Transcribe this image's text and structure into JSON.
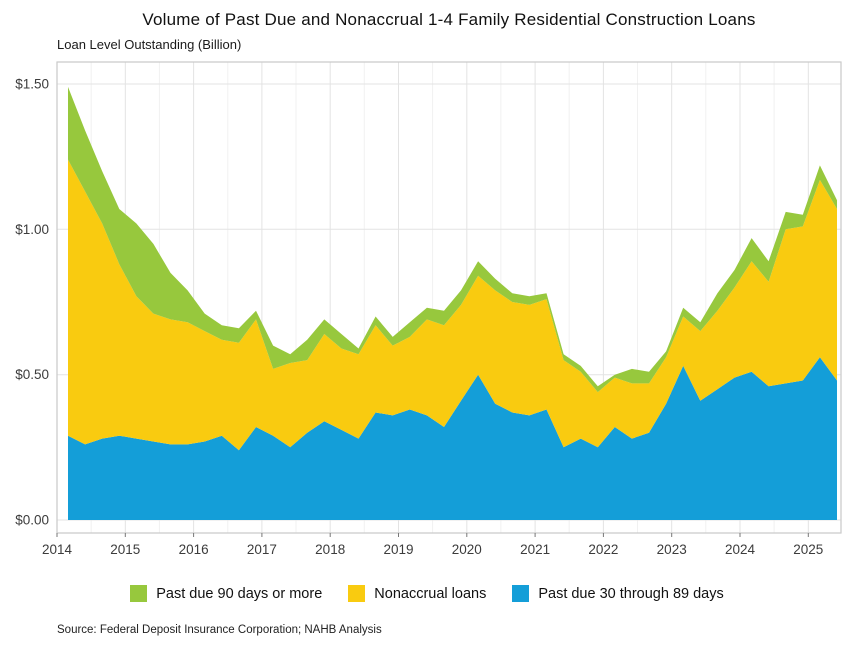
{
  "title": "Volume of Past Due and Nonaccrual 1-4 Family Residential Construction Loans",
  "subtitle": "Loan Level Outstanding (Billion)",
  "source": "Source: Federal Deposit Insurance Corporation; NAHB Analysis",
  "colors": {
    "past_due_90": "#97C83D",
    "nonaccrual": "#F9CB10",
    "past_due_30_89": "#149ED8",
    "gridline_major": "#E3E3E3",
    "gridline_minor": "#F1F1F1",
    "panel_border": "#C9C9C9",
    "axis_text": "#3c3c3c"
  },
  "legend": {
    "items": [
      {
        "label": "Past due 90 days or more",
        "color_key": "past_due_90"
      },
      {
        "label": "Nonaccrual loans",
        "color_key": "nonaccrual"
      },
      {
        "label": "Past due 30 through 89 days",
        "color_key": "past_due_30_89"
      }
    ]
  },
  "chart_data": {
    "type": "area",
    "stacked": true,
    "title": "Volume of Past Due and Nonaccrual 1-4 Family Residential Construction Loans",
    "ylabel": "Loan Level Outstanding (Billion)",
    "xlabel": "",
    "grid": true,
    "legend_position": "bottom",
    "ylim": [
      0,
      1.5
    ],
    "y_ticks": [
      0,
      0.5,
      1.0,
      1.5
    ],
    "y_tick_labels": [
      "$0.00",
      "$0.50",
      "$1.00",
      "$1.50"
    ],
    "x_tick_labels": [
      "2014",
      "2015",
      "2016",
      "2017",
      "2018",
      "2019",
      "2020",
      "2021",
      "2022",
      "2023",
      "2024",
      "2025"
    ],
    "categories": [
      "2014 Q1",
      "2014 Q2",
      "2014 Q3",
      "2014 Q4",
      "2015 Q1",
      "2015 Q2",
      "2015 Q3",
      "2015 Q4",
      "2016 Q1",
      "2016 Q2",
      "2016 Q3",
      "2016 Q4",
      "2017 Q1",
      "2017 Q2",
      "2017 Q3",
      "2017 Q4",
      "2018 Q1",
      "2018 Q2",
      "2018 Q3",
      "2018 Q4",
      "2019 Q1",
      "2019 Q2",
      "2019 Q3",
      "2019 Q4",
      "2020 Q1",
      "2020 Q2",
      "2020 Q3",
      "2020 Q4",
      "2021 Q1",
      "2021 Q2",
      "2021 Q3",
      "2021 Q4",
      "2022 Q1",
      "2022 Q2",
      "2022 Q3",
      "2022 Q4",
      "2023 Q1",
      "2023 Q2",
      "2023 Q3",
      "2023 Q4",
      "2024 Q1",
      "2024 Q2",
      "2024 Q3",
      "2024 Q4",
      "2025 Q1",
      "2025 Q2"
    ],
    "series": [
      {
        "name": "Past due 30 through 89 days",
        "color": "#149ED8",
        "values": [
          0.29,
          0.26,
          0.28,
          0.29,
          0.28,
          0.27,
          0.26,
          0.26,
          0.27,
          0.29,
          0.24,
          0.32,
          0.29,
          0.25,
          0.3,
          0.34,
          0.31,
          0.28,
          0.37,
          0.36,
          0.38,
          0.36,
          0.32,
          0.41,
          0.5,
          0.4,
          0.37,
          0.36,
          0.38,
          0.25,
          0.28,
          0.25,
          0.32,
          0.28,
          0.3,
          0.4,
          0.53,
          0.41,
          0.45,
          0.49,
          0.51,
          0.46,
          0.47,
          0.48,
          0.56,
          0.48
        ]
      },
      {
        "name": "Nonaccrual loans",
        "color": "#F9CB10",
        "values": [
          0.95,
          0.87,
          0.74,
          0.59,
          0.49,
          0.44,
          0.43,
          0.42,
          0.38,
          0.33,
          0.37,
          0.37,
          0.23,
          0.29,
          0.25,
          0.3,
          0.28,
          0.29,
          0.3,
          0.24,
          0.25,
          0.33,
          0.35,
          0.33,
          0.34,
          0.39,
          0.38,
          0.38,
          0.38,
          0.3,
          0.23,
          0.19,
          0.17,
          0.19,
          0.17,
          0.16,
          0.17,
          0.24,
          0.27,
          0.31,
          0.38,
          0.36,
          0.53,
          0.53,
          0.61,
          0.59
        ]
      },
      {
        "name": "Past due 90 days or more",
        "color": "#97C83D",
        "values": [
          0.25,
          0.21,
          0.18,
          0.19,
          0.25,
          0.24,
          0.16,
          0.11,
          0.06,
          0.05,
          0.05,
          0.03,
          0.08,
          0.03,
          0.07,
          0.05,
          0.05,
          0.02,
          0.03,
          0.03,
          0.05,
          0.04,
          0.05,
          0.05,
          0.05,
          0.04,
          0.03,
          0.03,
          0.02,
          0.02,
          0.02,
          0.02,
          0.01,
          0.05,
          0.04,
          0.02,
          0.03,
          0.03,
          0.06,
          0.06,
          0.08,
          0.07,
          0.06,
          0.04,
          0.05,
          0.03
        ]
      }
    ]
  }
}
